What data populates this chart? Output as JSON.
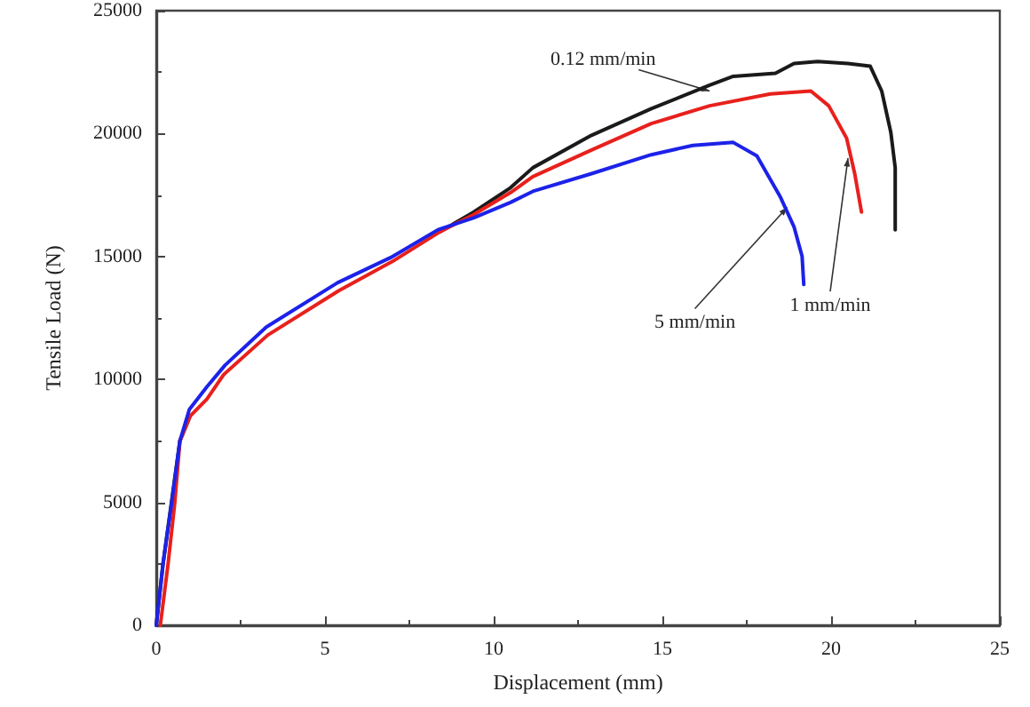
{
  "chart_data": {
    "type": "line",
    "xlabel": "Displacement (mm)",
    "ylabel": "Tensile Load (N)",
    "xlim": [
      0,
      25
    ],
    "xticks": [
      0,
      5,
      10,
      15,
      20,
      25
    ],
    "ylim": [
      0,
      25000
    ],
    "yticks": [
      0,
      5000,
      10000,
      15000,
      20000,
      25000
    ],
    "grid": false,
    "marker": "none",
    "line_style": "solid",
    "series": [
      {
        "color": "#1a1a1a",
        "x": [
          0,
          0.2,
          0.45,
          0.7,
          1,
          1.5,
          2,
          3.3,
          5.4,
          7,
          8.4,
          9.4,
          10.5,
          11.16,
          12.9,
          14.67,
          16.4,
          17.1,
          18.35,
          18.9,
          19.6,
          20.5,
          21.16,
          21.5,
          21.77,
          21.9,
          21.9
        ],
        "values": [
          0,
          2500,
          5000,
          7500,
          8500,
          null,
          null,
          null,
          null,
          null,
          16000,
          16800,
          17800,
          18610,
          19930,
          21010,
          21970,
          22330,
          22450,
          22850,
          22930,
          22850,
          22740,
          21730,
          20050,
          18610,
          16090
        ]
      },
      {
        "color": "#e8201c",
        "x": [
          0.12,
          0.35,
          0.55,
          0.7,
          1,
          1.5,
          2,
          3.3,
          5.4,
          7,
          8.4,
          9.4,
          10.5,
          11.16,
          12.9,
          14.67,
          16.4,
          18.2,
          19.4,
          19.93,
          20.46,
          20.7,
          20.9
        ],
        "values": [
          0,
          2500,
          5000,
          7500,
          8500,
          9200,
          10200,
          11800,
          13600,
          14800,
          16000,
          16700,
          17600,
          18250,
          19330,
          20410,
          21130,
          21610,
          21730,
          21130,
          19810,
          18370,
          16810
        ]
      },
      {
        "color": "#1c22e8",
        "x": [
          0,
          0.2,
          0.46,
          0.7,
          0.98,
          1.5,
          2.04,
          3.26,
          5.37,
          6.95,
          8.35,
          9.4,
          10.5,
          11.16,
          12.9,
          14.67,
          15.9,
          17.1,
          17.8,
          18.5,
          18.9,
          19.14,
          19.19
        ],
        "values": [
          0,
          2500,
          5010,
          7500,
          8780,
          9700,
          10580,
          12130,
          13930,
          14960,
          16090,
          16570,
          17200,
          17650,
          18370,
          19140,
          19520,
          19640,
          19090,
          17410,
          16210,
          15010,
          13860
        ]
      }
    ],
    "annotations": [
      {
        "text": "0.12 mm/min",
        "x": 16.4,
        "y": 21730
      },
      {
        "text": "5 mm/min",
        "x": 18.7,
        "y": 17000
      },
      {
        "text": "1 mm/min",
        "x": 20.5,
        "y": 19000
      }
    ]
  }
}
